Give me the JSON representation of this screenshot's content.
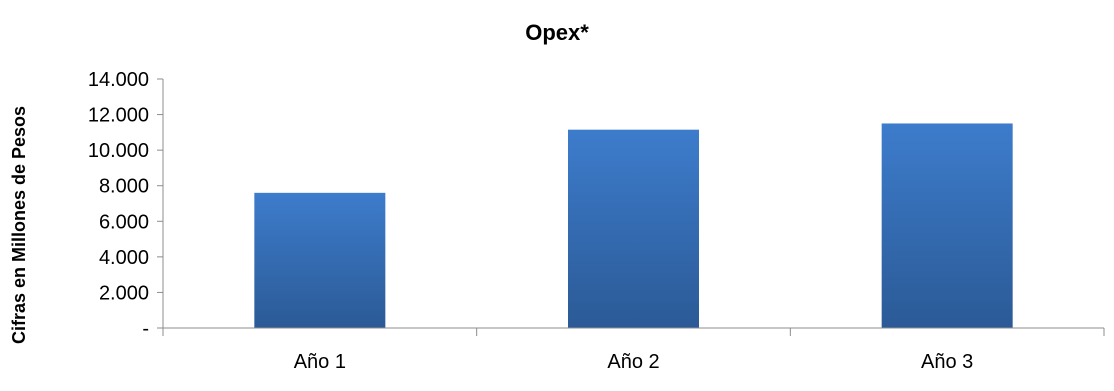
{
  "chart_data": {
    "type": "bar",
    "title": "Opex*",
    "ylabel": "Cifras en Millones de Pesos",
    "xlabel": "",
    "categories": [
      "Año 1",
      "Año 2",
      "Año 3"
    ],
    "values": [
      7600,
      11150,
      11500
    ],
    "ylim": [
      0,
      14000
    ],
    "yticks": [
      0,
      2000,
      4000,
      6000,
      8000,
      10000,
      12000,
      14000
    ],
    "ytick_labels": [
      "-",
      "2.000",
      "4.000",
      "6.000",
      "8.000",
      "10.000",
      "12.000",
      "14.000"
    ],
    "grid": false,
    "legend": "none",
    "bar_color_top": "#3d7ccc",
    "bar_color_bottom": "#2b5a96"
  }
}
